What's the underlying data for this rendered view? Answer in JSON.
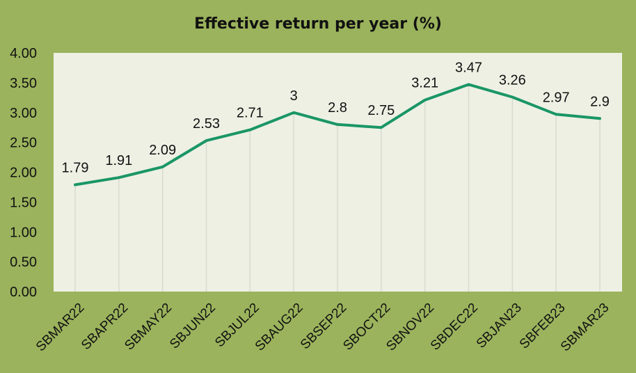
{
  "chart_data": {
    "type": "line",
    "title": "Effective return per year (%)",
    "xlabel": "",
    "ylabel": "",
    "categories": [
      "SBMAR22",
      "SBAPR22",
      "SBMAY22",
      "SBJUN22",
      "SBJUL22",
      "SBAUG22",
      "SBSEP22",
      "SBOCT22",
      "SBNOV22",
      "SBDEC22",
      "SBJAN23",
      "SBFEB23",
      "SBMAR23"
    ],
    "series": [
      {
        "values": [
          1.79,
          1.91,
          2.09,
          2.53,
          2.71,
          3,
          2.8,
          2.75,
          3.21,
          3.47,
          3.26,
          2.97,
          2.9
        ],
        "data_labels": [
          "1.79",
          "1.91",
          "2.09",
          "2.53",
          "2.71",
          "3",
          "2.8",
          "2.75",
          "3.21",
          "3.47",
          "3.26",
          "2.97",
          "2.9"
        ]
      }
    ],
    "ylim": [
      0,
      4
    ],
    "yticks": [
      "0.00",
      "0.50",
      "1.00",
      "1.50",
      "2.00",
      "2.50",
      "3.00",
      "3.50",
      "4.00"
    ],
    "grid": "vertical drop lines",
    "legend": "none",
    "colors": {
      "background": "#9bb35c",
      "plot_area": "#eef0e4",
      "line": "#1a9666",
      "drop_lines": "#d8dbcf"
    }
  }
}
